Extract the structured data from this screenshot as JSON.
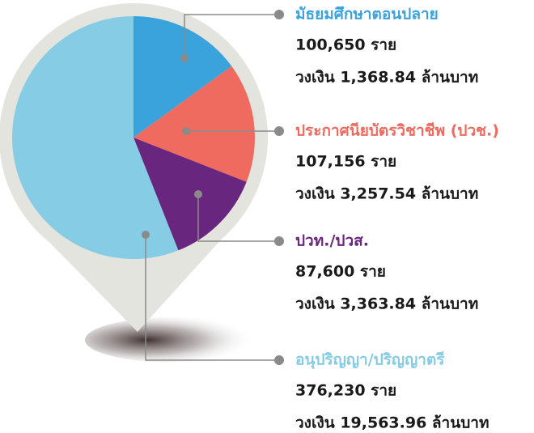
{
  "chart_data": {
    "type": "pie",
    "categories": [
      "มัธยมศึกษาตอนปลาย",
      "ประกาศนียบัตรวิชาชีพ (ปวช.)",
      "ปวท./ปวส.",
      "อนุปริญญา/ปริญญาตรี"
    ],
    "values": [
      100650,
      107156,
      87600,
      376230
    ],
    "value_labels": [
      "100,650 ราย",
      "107,156 ราย",
      "87,600 ราย",
      "376,230 ราย"
    ],
    "amount_labels": [
      "วงเงิน 1,368.84 ล้านบาท",
      "วงเงิน 3,257.54 ล้านบาท",
      "วงเงิน 3,363.84 ล้านบาท",
      "วงเงิน 19,563.96 ล้านบาท"
    ],
    "colors": [
      "#3aa3dc",
      "#ef6b5f",
      "#68267f",
      "#86cce4"
    ]
  }
}
